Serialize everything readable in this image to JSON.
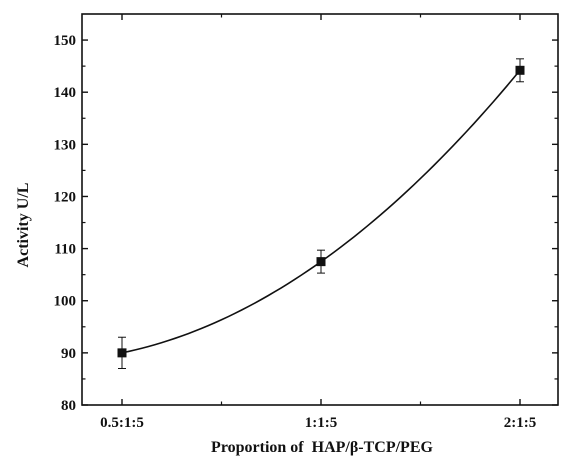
{
  "chart_data": {
    "type": "line",
    "title": "",
    "xlabel": "Proportion of  HAP/β-TCP/PEG",
    "ylabel": "Activity U/L",
    "categories": [
      "0.5:1:5",
      "1:1:5",
      "2:1:5"
    ],
    "series": [
      {
        "values": [
          90.0,
          107.5,
          144.2
        ],
        "errors": [
          3.0,
          2.2,
          2.2
        ]
      }
    ],
    "ylim": [
      80,
      155
    ],
    "yticks": [
      80,
      90,
      100,
      110,
      120,
      130,
      140,
      150
    ],
    "grid": false,
    "legend": "none",
    "marker": "square",
    "curve": "smooth",
    "colors": {
      "line": "#111111",
      "axis": "#111111",
      "background": "#ffffff"
    }
  }
}
